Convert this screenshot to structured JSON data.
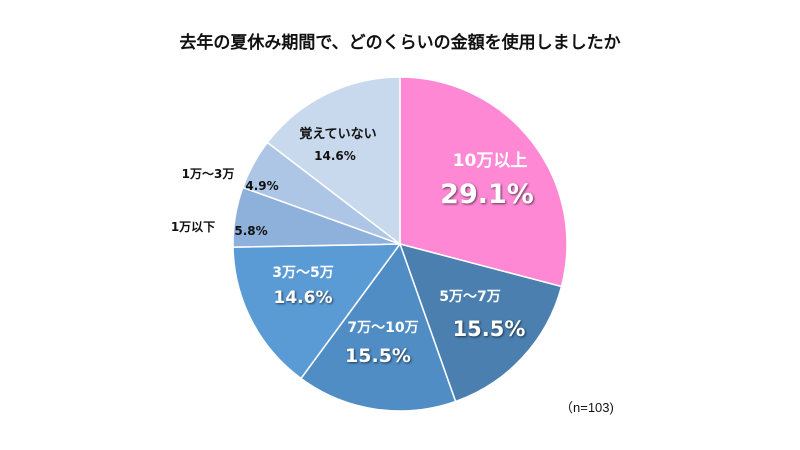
{
  "chart_data": {
    "type": "pie",
    "title": "去年の夏休み期間で、どのくらいの金額を使用しましたか",
    "note": "（n=103)",
    "start": "top",
    "direction": "clockwise",
    "slices": [
      {
        "label": "10万以上",
        "value": 29.1,
        "value_label": "29.1%",
        "color": "#ff88d4",
        "text_color": "#ffffff"
      },
      {
        "label": "5万～7万",
        "value": 15.5,
        "value_label": "15.5%",
        "color": "#4a7fb0",
        "text_color": "#ffffff"
      },
      {
        "label": "7万～10万",
        "value": 15.5,
        "value_label": "15.5%",
        "color": "#508dc4",
        "text_color": "#ffffff"
      },
      {
        "label": "3万～5万",
        "value": 14.6,
        "value_label": "14.6%",
        "color": "#5b9bd5",
        "text_color": "#ffffff"
      },
      {
        "label": "1万以下",
        "value": 5.8,
        "value_label": "5.8%",
        "color": "#8eb1dc",
        "text_color": "#111111"
      },
      {
        "label": "1万～3万",
        "value": 4.9,
        "value_label": "4.9%",
        "color": "#adc6e6",
        "text_color": "#111111"
      },
      {
        "label": "覚えていない",
        "value": 14.6,
        "value_label": "14.6%",
        "color": "#c9d9ed",
        "text_color": "#111111"
      }
    ]
  }
}
